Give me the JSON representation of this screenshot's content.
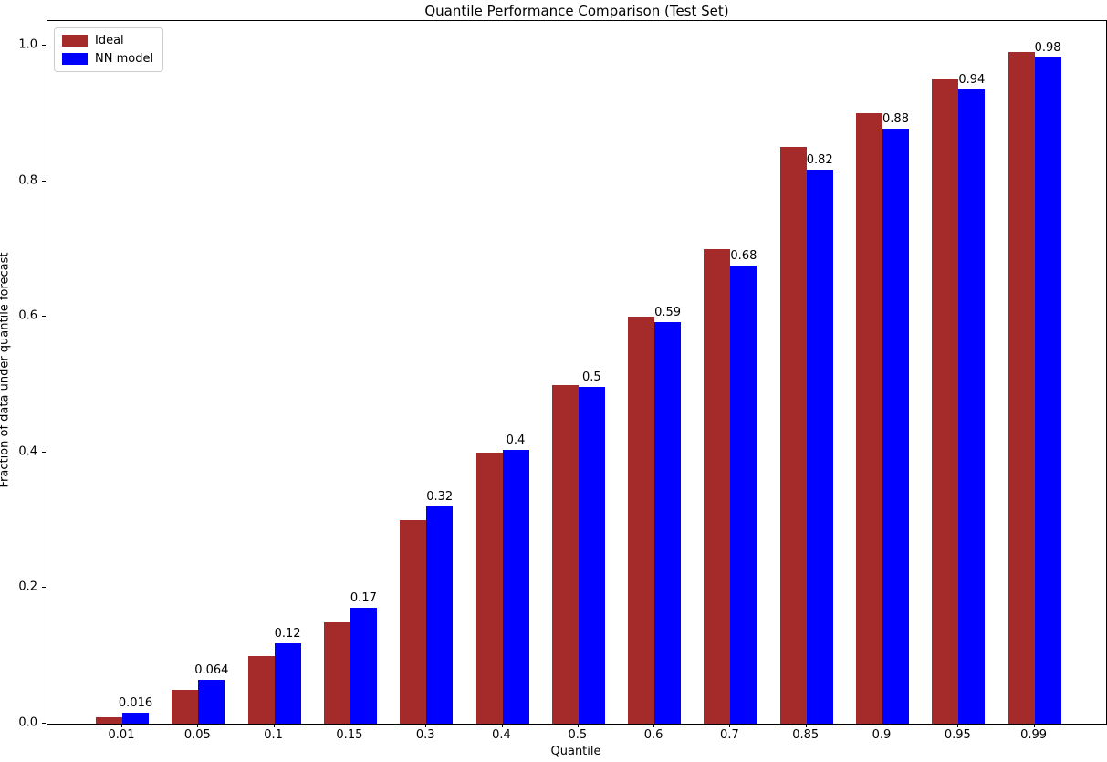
{
  "title": "Quantile Performance Comparison (Test Set)",
  "chart_data": {
    "type": "bar",
    "title": "Quantile Performance Comparison (Test Set)",
    "xlabel": "Quantile",
    "ylabel": "Fraction of data under quantile forecast",
    "categories": [
      "0.01",
      "0.05",
      "0.1",
      "0.15",
      "0.3",
      "0.4",
      "0.5",
      "0.6",
      "0.7",
      "0.85",
      "0.9",
      "0.95",
      "0.99"
    ],
    "series": [
      {
        "name": "Ideal",
        "color": "#a52a2a",
        "values": [
          0.01,
          0.05,
          0.1,
          0.15,
          0.3,
          0.4,
          0.5,
          0.6,
          0.7,
          0.85,
          0.9,
          0.95,
          0.99
        ]
      },
      {
        "name": "NN model",
        "color": "#0000ff",
        "values": [
          0.016,
          0.064,
          0.118,
          0.171,
          0.32,
          0.404,
          0.497,
          0.592,
          0.676,
          0.817,
          0.878,
          0.936,
          0.983
        ]
      }
    ],
    "bar_labels": {
      "series": "NN model",
      "texts": [
        "0.016",
        "0.064",
        "0.12",
        "0.17",
        "0.32",
        "0.4",
        "0.5",
        "0.59",
        "0.68",
        "0.82",
        "0.88",
        "0.94",
        "0.98"
      ]
    },
    "yticks": [
      0.0,
      0.2,
      0.4,
      0.6,
      0.8,
      1.0
    ],
    "ytick_labels": [
      "0.0",
      "0.2",
      "0.4",
      "0.6",
      "0.8",
      "1.0"
    ],
    "ylim": [
      0,
      1.0363
    ],
    "grid": false,
    "legend_position": "upper left",
    "legend": [
      {
        "label": "Ideal",
        "color": "#a52a2a"
      },
      {
        "label": "NN model",
        "color": "#0000ff"
      }
    ]
  }
}
